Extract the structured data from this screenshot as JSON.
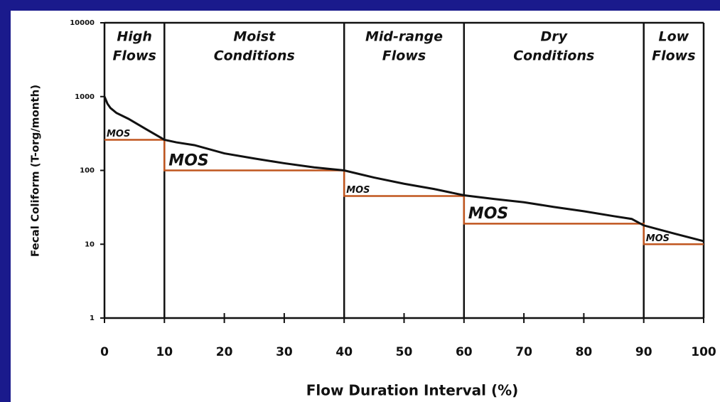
{
  "chart_data": {
    "type": "line",
    "log_y": true,
    "ylabel": "Fecal Coliform (T-org/month)",
    "xlabel": "Flow Duration Interval (%)",
    "xlim": [
      0,
      100
    ],
    "xticks": [
      0,
      10,
      20,
      30,
      40,
      50,
      60,
      70,
      80,
      90,
      100
    ],
    "ylim": [
      1,
      10000
    ],
    "yticks": [
      1,
      10,
      100,
      1000,
      10000
    ],
    "zones": [
      {
        "label": [
          "High",
          "Flows"
        ],
        "start": 0,
        "end": 10,
        "target": 260,
        "mos_label": "MOS"
      },
      {
        "label": [
          "Moist",
          "Conditions"
        ],
        "start": 10,
        "end": 40,
        "target": 100,
        "mos_label": "MOS"
      },
      {
        "label": [
          "Mid-range",
          "Flows"
        ],
        "start": 40,
        "end": 60,
        "target": 45,
        "mos_label": "MOS"
      },
      {
        "label": [
          "Dry",
          "Conditions"
        ],
        "start": 60,
        "end": 90,
        "target": 19,
        "mos_label": "MOS"
      },
      {
        "label": [
          "Low",
          "Flows"
        ],
        "start": 90,
        "end": 100,
        "target": 10,
        "mos_label": "MOS"
      }
    ],
    "target_color": "#c0561f",
    "curve": {
      "color": "#111111",
      "x": [
        0,
        0.5,
        1,
        2,
        4,
        7,
        10,
        12,
        15,
        20,
        25,
        30,
        35,
        40,
        45,
        50,
        55,
        60,
        65,
        70,
        75,
        80,
        85,
        88,
        90,
        95,
        100
      ],
      "values": [
        1000,
        800,
        700,
        600,
        500,
        360,
        260,
        240,
        220,
        170,
        145,
        125,
        110,
        100,
        80,
        66,
        56,
        46,
        41,
        37,
        32,
        28,
        24,
        22,
        18,
        14,
        11
      ]
    }
  }
}
